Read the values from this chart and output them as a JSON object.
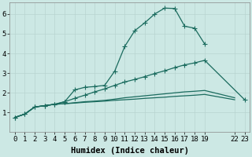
{
  "xlabel": "Humidex (Indice chaleur)",
  "ylabel": "",
  "bg_color": "#cce8e4",
  "grid_color": "#b8d4d0",
  "line_color": "#1a6b5e",
  "xlim": [
    -0.5,
    23.5
  ],
  "ylim": [
    0,
    6.6
  ],
  "y_ticks": [
    1,
    2,
    3,
    4,
    5,
    6
  ],
  "x_ticks": [
    0,
    1,
    2,
    3,
    4,
    5,
    6,
    7,
    8,
    9,
    10,
    11,
    12,
    13,
    14,
    15,
    16,
    17,
    18,
    19,
    22,
    23
  ],
  "line1_x": [
    0,
    1,
    2,
    3,
    4,
    5,
    6,
    7,
    8,
    9,
    10,
    11,
    12,
    13,
    14,
    15,
    16,
    17,
    18,
    19
  ],
  "line1_y": [
    0.75,
    0.92,
    1.28,
    1.35,
    1.42,
    1.55,
    2.15,
    2.28,
    2.32,
    2.38,
    3.1,
    4.35,
    5.15,
    5.55,
    6.0,
    6.3,
    6.28,
    5.38,
    5.28,
    4.48
  ],
  "line2_x": [
    0,
    1,
    2,
    3,
    4,
    5,
    6,
    7,
    8,
    9,
    10,
    11,
    12,
    13,
    14,
    15,
    16,
    17,
    18,
    19,
    23
  ],
  "line2_y": [
    0.75,
    0.92,
    1.28,
    1.35,
    1.42,
    1.55,
    1.72,
    1.88,
    2.05,
    2.2,
    2.38,
    2.55,
    2.68,
    2.82,
    2.98,
    3.12,
    3.28,
    3.42,
    3.52,
    3.65,
    1.65
  ],
  "line3_x": [
    0,
    1,
    2,
    3,
    4,
    5,
    6,
    7,
    8,
    9,
    10,
    11,
    12,
    13,
    14,
    15,
    16,
    17,
    18,
    19,
    22,
    23
  ],
  "line3_y": [
    0.75,
    0.92,
    1.28,
    1.35,
    1.42,
    1.45,
    1.5,
    1.55,
    1.58,
    1.62,
    1.68,
    1.75,
    1.8,
    1.85,
    1.9,
    1.95,
    2.0,
    2.05,
    2.08,
    2.12,
    1.75,
    null
  ],
  "line4_x": [
    0,
    1,
    2,
    3,
    4,
    5,
    6,
    7,
    8,
    9,
    10,
    11,
    12,
    13,
    14,
    15,
    16,
    17,
    18,
    19,
    22
  ],
  "line4_y": [
    0.75,
    0.92,
    1.28,
    1.35,
    1.42,
    1.45,
    1.48,
    1.52,
    1.55,
    1.58,
    1.62,
    1.65,
    1.68,
    1.72,
    1.75,
    1.78,
    1.82,
    1.85,
    1.88,
    1.92,
    1.65
  ],
  "tick_fontsize": 6.5,
  "label_fontsize": 7.5
}
